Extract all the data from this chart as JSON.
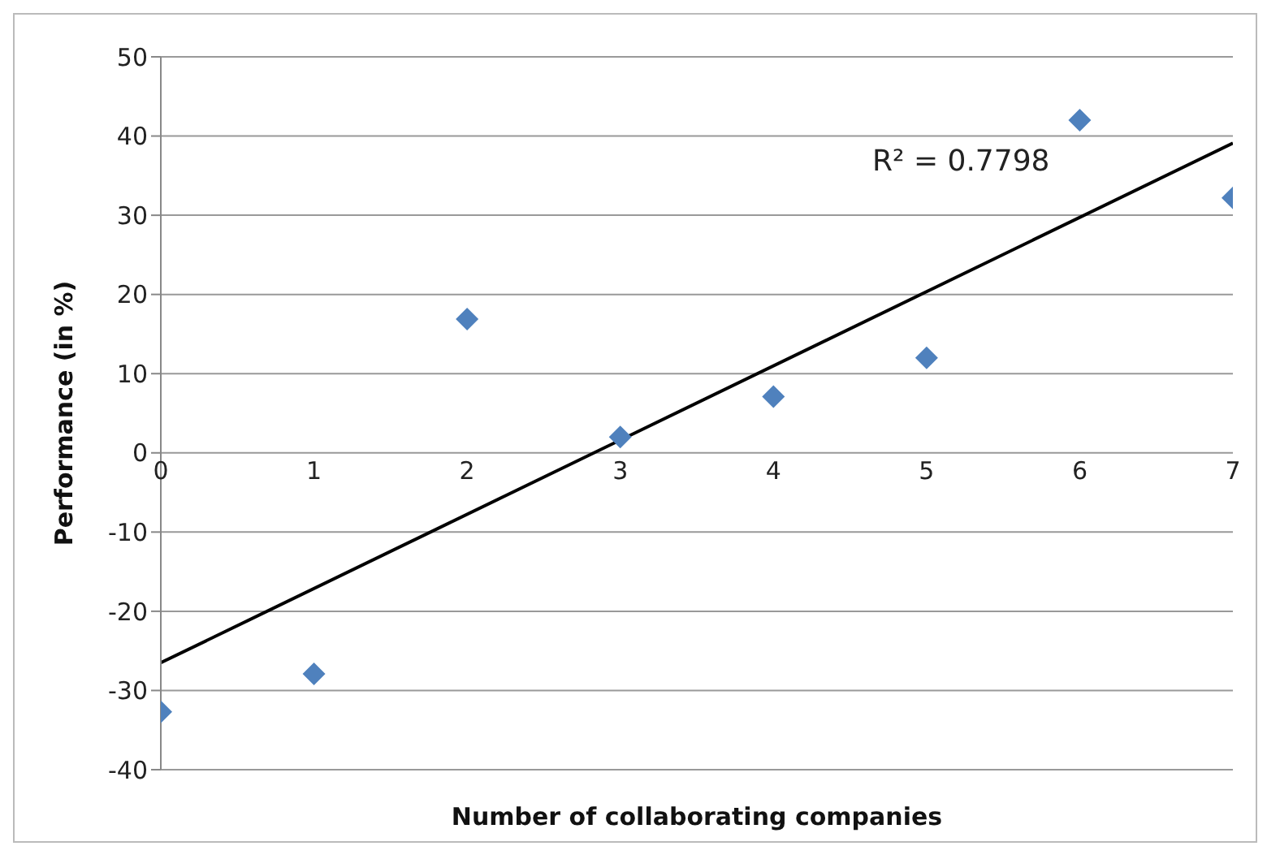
{
  "chart_data": {
    "type": "scatter",
    "xlabel": "Number of collaborating companies",
    "ylabel": "Performance (in %)",
    "xlim": [
      0,
      7
    ],
    "xticks": [
      0,
      1,
      2,
      3,
      4,
      5,
      6,
      7
    ],
    "ylim": [
      -40,
      50
    ],
    "yticks": [
      -40,
      -30,
      -20,
      -10,
      0,
      10,
      20,
      30,
      40,
      50
    ],
    "grid": "y",
    "legend": false,
    "series": [
      {
        "color": "#4f81bd",
        "marker": "diamond",
        "x": [
          0,
          1,
          2,
          3,
          4,
          5,
          6,
          7
        ],
        "values": [
          -32.7,
          -27.9,
          16.9,
          2,
          7.1,
          12,
          42,
          32.2
        ]
      },
      {
        "type": "line",
        "marker": "none",
        "color": "#000000",
        "x": [
          0,
          7
        ],
        "values": [
          -26.5,
          39.1
        ]
      }
    ],
    "annotations": [
      "R² = 0.7798"
    ]
  }
}
